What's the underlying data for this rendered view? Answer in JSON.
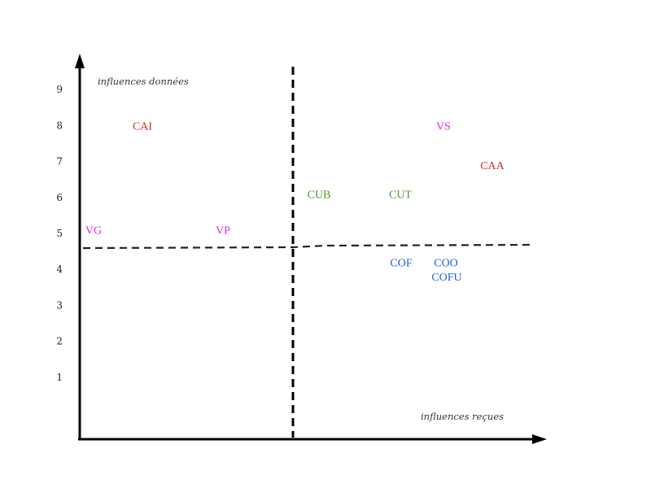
{
  "chart_data": {
    "type": "scatter",
    "title": "",
    "xlabel": "influences reçues",
    "ylabel": "influences données",
    "ylim": [
      0,
      9
    ],
    "y_ticks": [
      "1",
      "2",
      "3",
      "4",
      "5",
      "6",
      "7",
      "8",
      "9"
    ],
    "grid": false,
    "dividers": {
      "vertical": "dashed",
      "horizontal": "dashed"
    },
    "points": [
      {
        "label": "CAI",
        "y": 8.0,
        "color": "#d6272f"
      },
      {
        "label": "VS",
        "y": 8.0,
        "color": "#e626d6"
      },
      {
        "label": "CAA",
        "y": 6.9,
        "color": "#d6272f"
      },
      {
        "label": "CUB",
        "y": 6.1,
        "color": "#4a9a2a"
      },
      {
        "label": "CUT",
        "y": 6.1,
        "color": "#4a9a2a"
      },
      {
        "label": "VG",
        "y": 5.1,
        "color": "#e626d6"
      },
      {
        "label": "VP",
        "y": 5.1,
        "color": "#e626d6"
      },
      {
        "label": "COF",
        "y": 4.2,
        "color": "#1f5fe0"
      },
      {
        "label": "COO",
        "y": 4.2,
        "color": "#1f5fe0"
      },
      {
        "label": "COFU",
        "y": 3.8,
        "color": "#1f5fe0"
      }
    ]
  }
}
